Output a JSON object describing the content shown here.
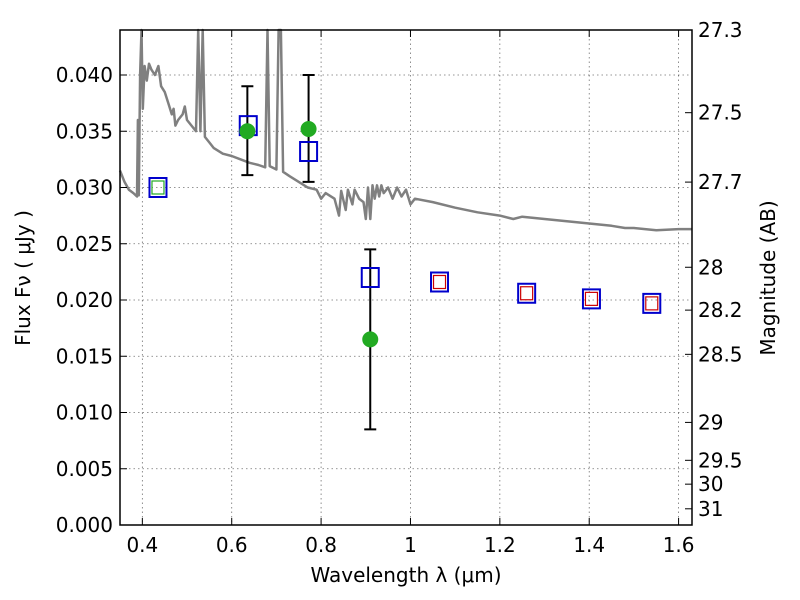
{
  "chart_data": {
    "type": "scatter",
    "x_axis": {
      "label": "Wavelength  λ (μm)",
      "range": [
        0.35,
        1.63
      ],
      "ticks": [
        0.4,
        0.6,
        0.8,
        1.0,
        1.2,
        1.4,
        1.6
      ],
      "tick_labels": [
        "0.4",
        "0.6",
        "0.8",
        "1",
        "1.2",
        "1.4",
        "1.6"
      ]
    },
    "y_axis_left": {
      "label": "Flux  Fν  ( μJy )",
      "range": [
        0.0,
        0.044
      ],
      "ticks": [
        0.0,
        0.005,
        0.01,
        0.015,
        0.02,
        0.025,
        0.03,
        0.035,
        0.04
      ],
      "tick_labels": [
        "0.000",
        "0.005",
        "0.010",
        "0.015",
        "0.020",
        "0.025",
        "0.030",
        "0.035",
        "0.040"
      ]
    },
    "y_axis_right": {
      "label": "Magnitude (AB)",
      "ticks_flux": [
        0.04413,
        0.03665,
        0.03048,
        0.02291,
        0.0191,
        0.01517,
        0.00912,
        0.00575,
        0.00363,
        0.00144
      ],
      "tick_labels": [
        "27.3",
        "27.5",
        "27.7",
        "28",
        "28.2",
        "28.5",
        "29",
        "29.5",
        "30",
        "31"
      ]
    },
    "grid": true,
    "colors": {
      "sed": "#808080",
      "model_blue": "#0000cc",
      "model_red": "#cc0000",
      "observed": "#22aa22",
      "errorbar": "#000000"
    },
    "series": [
      {
        "kind": "line",
        "color": "#808080",
        "points": [
          [
            0.35,
            0.0315
          ],
          [
            0.36,
            0.0305
          ],
          [
            0.37,
            0.0298
          ],
          [
            0.38,
            0.0295
          ],
          [
            0.388,
            0.0292
          ],
          [
            0.39,
            0.036
          ],
          [
            0.392,
            0.0293
          ],
          [
            0.395,
            0.04
          ],
          [
            0.398,
            0.044
          ],
          [
            0.401,
            0.037
          ],
          [
            0.405,
            0.0408
          ],
          [
            0.41,
            0.0395
          ],
          [
            0.415,
            0.041
          ],
          [
            0.42,
            0.0405
          ],
          [
            0.428,
            0.04
          ],
          [
            0.436,
            0.0408
          ],
          [
            0.442,
            0.039
          ],
          [
            0.45,
            0.0385
          ],
          [
            0.458,
            0.0375
          ],
          [
            0.466,
            0.0365
          ],
          [
            0.47,
            0.037
          ],
          [
            0.474,
            0.0355
          ],
          [
            0.48,
            0.036
          ],
          [
            0.49,
            0.0365
          ],
          [
            0.495,
            0.0372
          ],
          [
            0.5,
            0.036
          ],
          [
            0.51,
            0.0355
          ],
          [
            0.52,
            0.035
          ],
          [
            0.525,
            0.044
          ],
          [
            0.53,
            0.035
          ],
          [
            0.535,
            0.044
          ],
          [
            0.54,
            0.0345
          ],
          [
            0.55,
            0.034
          ],
          [
            0.56,
            0.0335
          ],
          [
            0.58,
            0.033
          ],
          [
            0.6,
            0.0328
          ],
          [
            0.62,
            0.0325
          ],
          [
            0.64,
            0.0322
          ],
          [
            0.66,
            0.032
          ],
          [
            0.675,
            0.0318
          ],
          [
            0.68,
            0.044
          ],
          [
            0.685,
            0.0319
          ],
          [
            0.7,
            0.0316
          ],
          [
            0.705,
            0.044
          ],
          [
            0.71,
            0.044
          ],
          [
            0.715,
            0.0314
          ],
          [
            0.73,
            0.031
          ],
          [
            0.75,
            0.0305
          ],
          [
            0.77,
            0.03
          ],
          [
            0.79,
            0.0298
          ],
          [
            0.8,
            0.029
          ],
          [
            0.81,
            0.0295
          ],
          [
            0.83,
            0.029
          ],
          [
            0.84,
            0.0275
          ],
          [
            0.845,
            0.0297
          ],
          [
            0.855,
            0.028
          ],
          [
            0.86,
            0.0298
          ],
          [
            0.87,
            0.0285
          ],
          [
            0.875,
            0.0298
          ],
          [
            0.885,
            0.029
          ],
          [
            0.895,
            0.0287
          ],
          [
            0.9,
            0.0272
          ],
          [
            0.905,
            0.03
          ],
          [
            0.91,
            0.0272
          ],
          [
            0.915,
            0.0302
          ],
          [
            0.92,
            0.029
          ],
          [
            0.925,
            0.0302
          ],
          [
            0.93,
            0.0292
          ],
          [
            0.935,
            0.0302
          ],
          [
            0.94,
            0.0295
          ],
          [
            0.95,
            0.03
          ],
          [
            0.96,
            0.029
          ],
          [
            0.97,
            0.03
          ],
          [
            0.98,
            0.0292
          ],
          [
            0.99,
            0.0298
          ],
          [
            1.0,
            0.0285
          ],
          [
            1.01,
            0.029
          ],
          [
            1.05,
            0.0287
          ],
          [
            1.1,
            0.0282
          ],
          [
            1.15,
            0.0278
          ],
          [
            1.2,
            0.0275
          ],
          [
            1.23,
            0.0272
          ],
          [
            1.25,
            0.0274
          ],
          [
            1.3,
            0.0272
          ],
          [
            1.35,
            0.027
          ],
          [
            1.4,
            0.0268
          ],
          [
            1.45,
            0.0266
          ],
          [
            1.48,
            0.0264
          ],
          [
            1.5,
            0.0264
          ],
          [
            1.55,
            0.0262
          ],
          [
            1.6,
            0.0263
          ],
          [
            1.63,
            0.0263
          ]
        ]
      },
      {
        "kind": "model_squares",
        "name": "",
        "points": [
          {
            "x": 0.435,
            "y": 0.03,
            "inner": "green"
          },
          {
            "x": 0.637,
            "y": 0.0355,
            "inner": "none"
          },
          {
            "x": 0.772,
            "y": 0.0332,
            "inner": "none"
          },
          {
            "x": 0.91,
            "y": 0.022,
            "inner": "none"
          },
          {
            "x": 1.065,
            "y": 0.0216,
            "inner": "red"
          },
          {
            "x": 1.26,
            "y": 0.0206,
            "inner": "red"
          },
          {
            "x": 1.405,
            "y": 0.0201,
            "inner": "red"
          },
          {
            "x": 1.54,
            "y": 0.0197,
            "inner": "red"
          }
        ]
      },
      {
        "kind": "observed_points",
        "name": "",
        "points": [
          {
            "x": 0.635,
            "y": 0.035,
            "err_low": 0.0311,
            "err_high": 0.039
          },
          {
            "x": 0.772,
            "y": 0.0352,
            "err_low": 0.0305,
            "err_high": 0.04
          },
          {
            "x": 0.91,
            "y": 0.0165,
            "err_low": 0.0085,
            "err_high": 0.0245
          }
        ]
      }
    ]
  }
}
